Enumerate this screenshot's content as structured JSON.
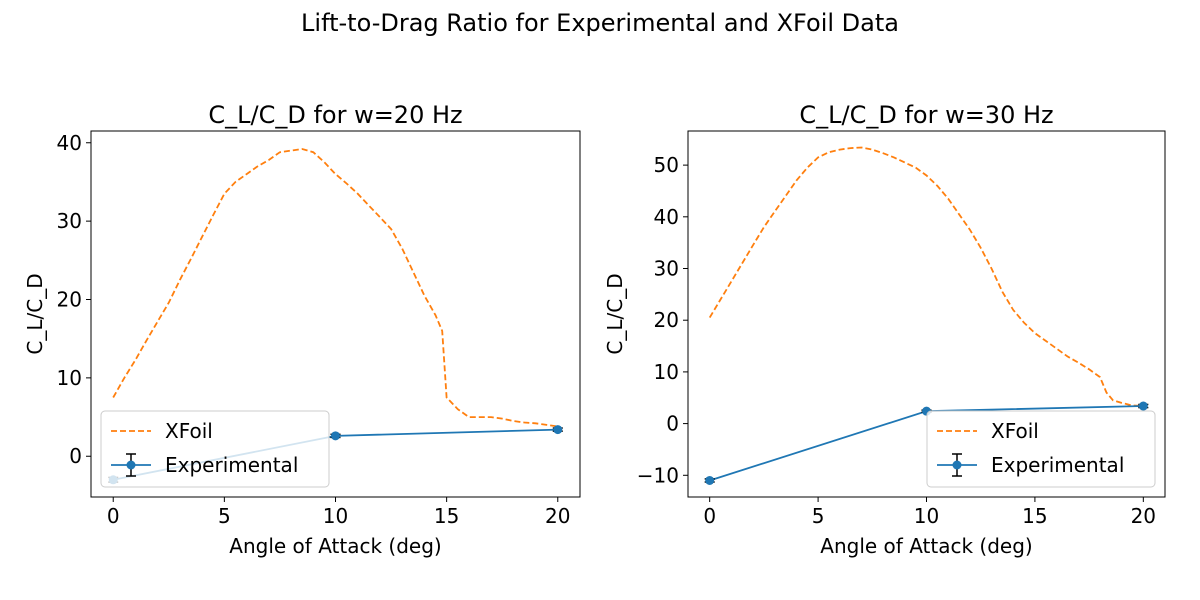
{
  "figure": {
    "suptitle": "Lift-to-Drag Ratio for Experimental and XFoil Data"
  },
  "colors": {
    "xfoil": "#ff7f0e",
    "experimental": "#1f77b4",
    "errorbar": "#000000"
  },
  "chart_data": [
    {
      "type": "line",
      "title": "C_L/C_D for w=20 Hz",
      "xlabel": "Angle of Attack (deg)",
      "ylabel": "C_L/C_D",
      "xlim": [
        -1,
        21
      ],
      "ylim": [
        -5.2,
        41.5
      ],
      "xticks": [
        0,
        5,
        10,
        15,
        20
      ],
      "yticks": [
        0,
        10,
        20,
        30,
        40
      ],
      "legend_position": "lower-left",
      "series": [
        {
          "name": "XFoil",
          "style": "dashed",
          "x": [
            0,
            0.5,
            1,
            1.5,
            2,
            2.5,
            3,
            3.5,
            4,
            4.5,
            5,
            5.5,
            6,
            6.5,
            7,
            7.5,
            8,
            8.5,
            9,
            9.5,
            10,
            10.5,
            11,
            11.5,
            12,
            12.5,
            13,
            13.5,
            14,
            14.5,
            14.8,
            15,
            15.5,
            16,
            16.5,
            17,
            17.5,
            18,
            18.5,
            19,
            19.5,
            20
          ],
          "y": [
            7.5,
            10,
            12.3,
            14.8,
            17.2,
            19.6,
            22.5,
            25.2,
            28,
            30.8,
            33.5,
            35,
            36,
            37,
            37.8,
            38.8,
            39,
            39.2,
            38.8,
            37.5,
            36,
            34.8,
            33.5,
            32,
            30.5,
            29,
            26.5,
            23.5,
            20.5,
            18,
            16,
            7.5,
            6,
            5,
            5,
            5,
            4.8,
            4.5,
            4.3,
            4.2,
            4,
            3.8
          ]
        },
        {
          "name": "Experimental",
          "style": "solid-markers-errorbars",
          "x": [
            0,
            10,
            20
          ],
          "y": [
            -3.0,
            2.6,
            3.4
          ],
          "yerr": [
            0.3,
            0.2,
            0.2
          ]
        }
      ]
    },
    {
      "type": "line",
      "title": "C_L/C_D for w=30 Hz",
      "xlabel": "Angle of Attack (deg)",
      "ylabel": "C_L/C_D",
      "xlim": [
        -1,
        21
      ],
      "ylim": [
        -14.2,
        56.6
      ],
      "xticks": [
        0,
        5,
        10,
        15,
        20
      ],
      "yticks": [
        -10,
        0,
        10,
        20,
        30,
        40,
        50
      ],
      "legend_position": "lower-right",
      "series": [
        {
          "name": "XFoil",
          "style": "dashed",
          "x": [
            0,
            0.5,
            1,
            1.5,
            2,
            2.5,
            3,
            3.5,
            4,
            4.5,
            5,
            5.5,
            6,
            6.5,
            7,
            7.5,
            8,
            8.5,
            9,
            9.5,
            10,
            10.5,
            11,
            11.5,
            12,
            12.5,
            13,
            13.5,
            14,
            14.5,
            15,
            15.5,
            16,
            16.5,
            17,
            17.5,
            18,
            18.3,
            18.6,
            19,
            19.5,
            20
          ],
          "y": [
            20.5,
            24,
            27.5,
            31,
            34.5,
            38,
            41,
            44,
            47,
            49.5,
            51.5,
            52.5,
            53,
            53.3,
            53.4,
            53,
            52.3,
            51.5,
            50.5,
            49.5,
            48,
            46,
            43.5,
            40.5,
            37.5,
            34,
            30,
            25.5,
            22,
            19.5,
            17.5,
            16,
            14.5,
            13,
            11.8,
            10.5,
            9,
            6,
            4.5,
            4,
            3.5,
            3.4
          ]
        },
        {
          "name": "Experimental",
          "style": "solid-markers-errorbars",
          "x": [
            0,
            10,
            20
          ],
          "y": [
            -11.0,
            2.4,
            3.4
          ],
          "yerr": [
            0.3,
            0.2,
            0.3
          ]
        }
      ]
    }
  ]
}
